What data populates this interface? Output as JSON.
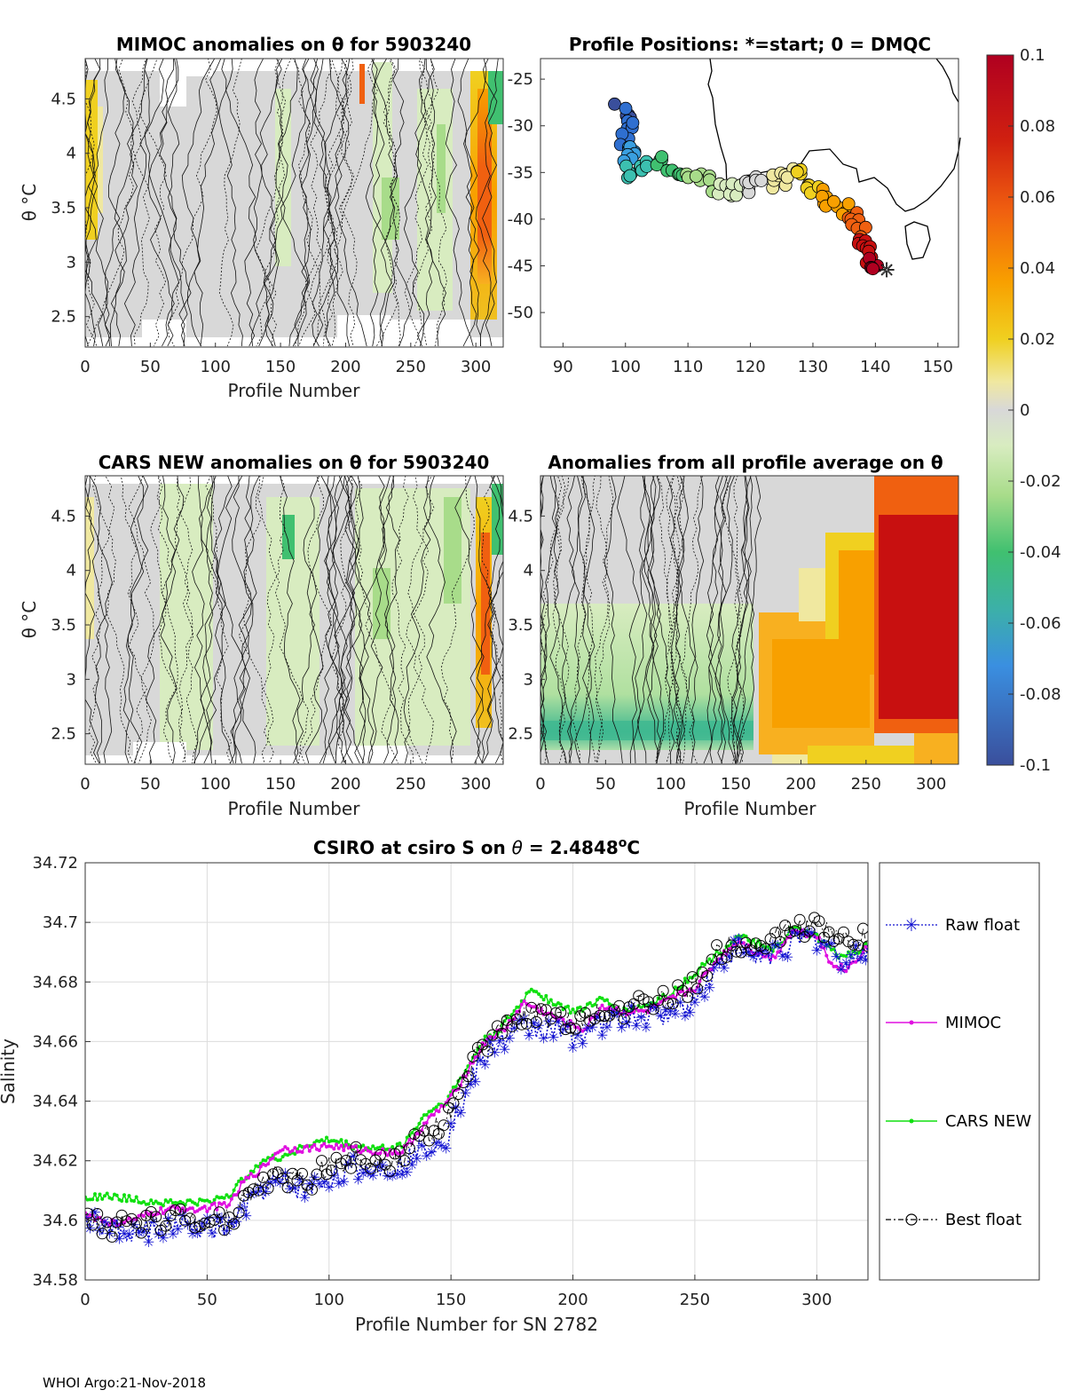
{
  "colors": {
    "raw_float": "#1010d0",
    "mimoc": "#e010e0",
    "cars_new": "#10e010",
    "best_float": "#000000",
    "grid": "#dcdcdc",
    "colormap": [
      "#3a4f9c",
      "#2f6fd0",
      "#3a9fe0",
      "#3cc0b0",
      "#40c070",
      "#a8dc8a",
      "#d8ecc0",
      "#d8d8d8",
      "#f0e8a0",
      "#f0d020",
      "#f8a000",
      "#f06010",
      "#c81010",
      "#b00020"
    ]
  },
  "panels": {
    "mimoc": {
      "title": "MIMOC anomalies on θ  for 5903240",
      "ylabel": "θ °C",
      "xlabel": "Profile Number",
      "xticks": [
        "0",
        "50",
        "100",
        "150",
        "200",
        "250",
        "300"
      ],
      "yticks": [
        "2.5",
        "3",
        "3.5",
        "4",
        "4.5"
      ]
    },
    "positions": {
      "title": "Profile Positions: *=start; 0 = DMQC",
      "xticks": [
        "90",
        "100",
        "110",
        "120",
        "130",
        "140",
        "150"
      ],
      "yticks": [
        "-25",
        "-30",
        "-35",
        "-40",
        "-45",
        "-50"
      ]
    },
    "cars": {
      "title": "CARS NEW anomalies on θ for 5903240",
      "ylabel": "θ °C",
      "xlabel": "Profile Number",
      "xticks": [
        "0",
        "50",
        "100",
        "150",
        "200",
        "250",
        "300"
      ],
      "yticks": [
        "2.5",
        "3",
        "3.5",
        "4",
        "4.5"
      ]
    },
    "allavg": {
      "title": "Anomalies from all profile average on θ",
      "xlabel": "Profile Number",
      "xticks": [
        "0",
        "50",
        "100",
        "150",
        "200",
        "250",
        "300"
      ],
      "yticks": [
        "2.5",
        "3",
        "3.5",
        "4",
        "4.5"
      ]
    },
    "colorbar": {
      "ticks": [
        "0.1",
        "0.08",
        "0.06",
        "0.04",
        "0.02",
        "0",
        "-0.02",
        "-0.04",
        "-0.06",
        "-0.08",
        "-0.1"
      ]
    }
  },
  "chart_data": {
    "type": "line",
    "title": "CSIRO at csiro S on θ = 2.4848°C",
    "title_parts": {
      "prefix": "CSIRO at csiro S on ",
      "theta": "θ",
      "value": " = 2.4848",
      "sup": "o",
      "unit": "C"
    },
    "xlabel": "Profile Number for SN 2782",
    "ylabel": "Salinity",
    "xlim": [
      0,
      321
    ],
    "ylim": [
      34.58,
      34.72
    ],
    "xticks": [
      "0",
      "50",
      "100",
      "150",
      "200",
      "250",
      "300"
    ],
    "yticks": [
      "34.58",
      "34.6",
      "34.62",
      "34.64",
      "34.66",
      "34.68",
      "34.7",
      "34.72"
    ],
    "series": [
      {
        "name": "Raw float",
        "marker": "star",
        "key": [
          [
            0,
            34.601
          ],
          [
            10,
            34.597
          ],
          [
            20,
            34.596
          ],
          [
            30,
            34.597
          ],
          [
            40,
            34.598
          ],
          [
            50,
            34.597
          ],
          [
            60,
            34.598
          ],
          [
            65,
            34.604
          ],
          [
            72,
            34.61
          ],
          [
            80,
            34.613
          ],
          [
            90,
            34.61
          ],
          [
            100,
            34.614
          ],
          [
            110,
            34.618
          ],
          [
            120,
            34.617
          ],
          [
            130,
            34.619
          ],
          [
            140,
            34.625
          ],
          [
            148,
            34.628
          ],
          [
            155,
            34.64
          ],
          [
            160,
            34.65
          ],
          [
            168,
            34.659
          ],
          [
            175,
            34.662
          ],
          [
            180,
            34.665
          ],
          [
            190,
            34.664
          ],
          [
            200,
            34.662
          ],
          [
            210,
            34.665
          ],
          [
            220,
            34.668
          ],
          [
            230,
            34.668
          ],
          [
            240,
            34.67
          ],
          [
            250,
            34.674
          ],
          [
            260,
            34.686
          ],
          [
            268,
            34.692
          ],
          [
            275,
            34.688
          ],
          [
            285,
            34.691
          ],
          [
            295,
            34.695
          ],
          [
            305,
            34.693
          ],
          [
            312,
            34.686
          ],
          [
            320,
            34.691
          ]
        ]
      },
      {
        "name": "MIMOC",
        "marker": "dot",
        "key": [
          [
            0,
            34.602
          ],
          [
            10,
            34.599
          ],
          [
            20,
            34.6
          ],
          [
            30,
            34.603
          ],
          [
            40,
            34.604
          ],
          [
            50,
            34.604
          ],
          [
            60,
            34.606
          ],
          [
            65,
            34.613
          ],
          [
            72,
            34.617
          ],
          [
            80,
            34.624
          ],
          [
            90,
            34.624
          ],
          [
            100,
            34.625
          ],
          [
            110,
            34.624
          ],
          [
            120,
            34.623
          ],
          [
            130,
            34.623
          ],
          [
            140,
            34.633
          ],
          [
            150,
            34.641
          ],
          [
            158,
            34.652
          ],
          [
            165,
            34.661
          ],
          [
            172,
            34.664
          ],
          [
            180,
            34.673
          ],
          [
            188,
            34.67
          ],
          [
            195,
            34.667
          ],
          [
            205,
            34.664
          ],
          [
            212,
            34.672
          ],
          [
            220,
            34.67
          ],
          [
            230,
            34.67
          ],
          [
            240,
            34.674
          ],
          [
            250,
            34.678
          ],
          [
            260,
            34.688
          ],
          [
            268,
            34.694
          ],
          [
            275,
            34.69
          ],
          [
            282,
            34.688
          ],
          [
            290,
            34.697
          ],
          [
            300,
            34.696
          ],
          [
            305,
            34.687
          ],
          [
            312,
            34.684
          ],
          [
            320,
            34.691
          ]
        ]
      },
      {
        "name": "CARS NEW",
        "marker": "dot",
        "key": [
          [
            0,
            34.608
          ],
          [
            10,
            34.608
          ],
          [
            20,
            34.607
          ],
          [
            30,
            34.606
          ],
          [
            40,
            34.606
          ],
          [
            50,
            34.606
          ],
          [
            60,
            34.609
          ],
          [
            65,
            34.614
          ],
          [
            72,
            34.62
          ],
          [
            80,
            34.621
          ],
          [
            90,
            34.625
          ],
          [
            100,
            34.627
          ],
          [
            110,
            34.625
          ],
          [
            120,
            34.624
          ],
          [
            130,
            34.625
          ],
          [
            140,
            34.636
          ],
          [
            148,
            34.64
          ],
          [
            156,
            34.65
          ],
          [
            163,
            34.66
          ],
          [
            170,
            34.664
          ],
          [
            178,
            34.672
          ],
          [
            183,
            34.678
          ],
          [
            190,
            34.674
          ],
          [
            200,
            34.67
          ],
          [
            212,
            34.674
          ],
          [
            220,
            34.67
          ],
          [
            230,
            34.672
          ],
          [
            240,
            34.676
          ],
          [
            250,
            34.683
          ],
          [
            260,
            34.69
          ],
          [
            268,
            34.695
          ],
          [
            275,
            34.693
          ],
          [
            282,
            34.69
          ],
          [
            290,
            34.698
          ],
          [
            300,
            34.695
          ],
          [
            310,
            34.688
          ],
          [
            320,
            34.692
          ]
        ]
      },
      {
        "name": "Best float",
        "marker": "circle",
        "key": [
          [
            0,
            34.601
          ],
          [
            10,
            34.598
          ],
          [
            20,
            34.598
          ],
          [
            30,
            34.6
          ],
          [
            40,
            34.601
          ],
          [
            50,
            34.6
          ],
          [
            60,
            34.601
          ],
          [
            65,
            34.607
          ],
          [
            72,
            34.613
          ],
          [
            80,
            34.616
          ],
          [
            90,
            34.612
          ],
          [
            100,
            34.618
          ],
          [
            110,
            34.621
          ],
          [
            120,
            34.62
          ],
          [
            130,
            34.621
          ],
          [
            140,
            34.63
          ],
          [
            148,
            34.632
          ],
          [
            155,
            34.645
          ],
          [
            160,
            34.655
          ],
          [
            168,
            34.662
          ],
          [
            175,
            34.668
          ],
          [
            180,
            34.67
          ],
          [
            190,
            34.668
          ],
          [
            200,
            34.666
          ],
          [
            210,
            34.67
          ],
          [
            220,
            34.671
          ],
          [
            230,
            34.672
          ],
          [
            240,
            34.674
          ],
          [
            250,
            34.679
          ],
          [
            260,
            34.69
          ],
          [
            268,
            34.694
          ],
          [
            275,
            34.691
          ],
          [
            285,
            34.696
          ],
          [
            295,
            34.699
          ],
          [
            305,
            34.697
          ],
          [
            312,
            34.694
          ],
          [
            320,
            34.695
          ]
        ]
      }
    ]
  },
  "footer": "WHOI Argo:21-Nov-2018"
}
